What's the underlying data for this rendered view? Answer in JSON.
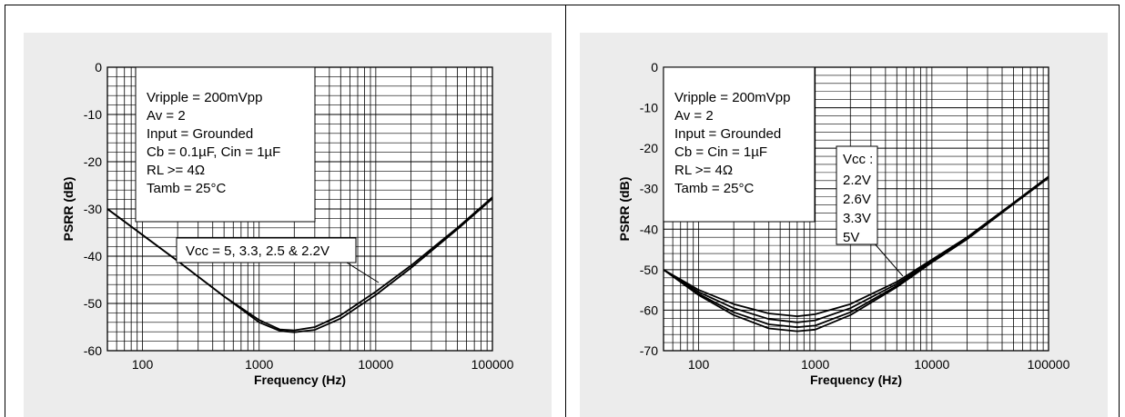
{
  "chart_data": [
    {
      "type": "line",
      "xlabel": "Frequency (Hz)",
      "ylabel": "PSRR (dB)",
      "x_scale": "log",
      "xlim": [
        50,
        100000
      ],
      "ylim": [
        -60,
        0
      ],
      "y_ticks": [
        0,
        -10,
        -20,
        -30,
        -40,
        -50,
        -60
      ],
      "x_tick_labels": [
        "100",
        "1000",
        "10000",
        "100000"
      ],
      "grid": true,
      "conditions": [
        "Vripple = 200mVpp",
        "Av = 2",
        "Input = Grounded",
        "Cb =  0.1µF, Cin = 1µF",
        "RL >= 4Ω",
        "Tamb  = 25°C"
      ],
      "annotation": "Vcc = 5, 3.3, 2.5 & 2.2V",
      "series": [
        {
          "name": "",
          "x": [
            50,
            100,
            200,
            500,
            1000,
            1500,
            2000,
            3000,
            5000,
            10000,
            20000,
            50000,
            100000
          ],
          "y": [
            -30,
            -35.5,
            -41,
            -48.5,
            -53.5,
            -55.5,
            -55.7,
            -55,
            -52.5,
            -47.5,
            -42,
            -34,
            -27.5
          ]
        },
        {
          "name": "",
          "x": [
            50,
            100,
            200,
            500,
            1000,
            1500,
            2000,
            3000,
            5000,
            10000,
            20000,
            50000,
            100000
          ],
          "y": [
            -30,
            -35.5,
            -41,
            -48.5,
            -54,
            -55.8,
            -56.1,
            -55.6,
            -53.2,
            -48.2,
            -42.5,
            -34.3,
            -27.8
          ]
        }
      ]
    },
    {
      "type": "line",
      "xlabel": "Frequency (Hz)",
      "ylabel": "PSRR (dB)",
      "x_scale": "log",
      "xlim": [
        50,
        100000
      ],
      "ylim": [
        -70,
        0
      ],
      "y_ticks": [
        0,
        -10,
        -20,
        -30,
        -40,
        -50,
        -60,
        -70
      ],
      "x_tick_labels": [
        "100",
        "1000",
        "10000",
        "100000"
      ],
      "grid": true,
      "conditions": [
        "Vripple = 200mVpp",
        "Av = 2",
        "Input = Grounded",
        "Cb = Cin = 1µF",
        "RL >= 4Ω",
        "Tamb  = 25°C"
      ],
      "legend_title": "Vcc :",
      "legend_items": [
        "2.2V",
        "2.6V",
        "3.3V",
        "5V"
      ],
      "series": [
        {
          "name": "2.2V",
          "x": [
            50,
            100,
            200,
            400,
            700,
            1000,
            2000,
            5000,
            10000,
            20000,
            50000,
            100000
          ],
          "y": [
            -50,
            -55,
            -58.5,
            -60.8,
            -61.5,
            -61,
            -58.5,
            -53,
            -47.5,
            -42,
            -33.5,
            -27
          ]
        },
        {
          "name": "2.6V",
          "x": [
            50,
            100,
            200,
            400,
            700,
            1000,
            2000,
            5000,
            10000,
            20000,
            50000,
            100000
          ],
          "y": [
            -50,
            -55.5,
            -59.5,
            -62.2,
            -63,
            -62.5,
            -59.5,
            -53.5,
            -47.8,
            -42.2,
            -33.6,
            -27.1
          ]
        },
        {
          "name": "3.3V",
          "x": [
            50,
            100,
            200,
            400,
            700,
            1000,
            2000,
            5000,
            10000,
            20000,
            50000,
            100000
          ],
          "y": [
            -50,
            -56,
            -60.5,
            -63.5,
            -64.2,
            -63.8,
            -60.5,
            -54,
            -48,
            -42.4,
            -33.7,
            -27.2
          ]
        },
        {
          "name": "5V",
          "x": [
            50,
            100,
            200,
            400,
            700,
            1000,
            2000,
            5000,
            10000,
            20000,
            50000,
            100000
          ],
          "y": [
            -50,
            -56.3,
            -61.2,
            -64.5,
            -65.2,
            -64.8,
            -61.2,
            -54.3,
            -48.2,
            -42.5,
            -33.8,
            -27.3
          ]
        }
      ]
    }
  ]
}
